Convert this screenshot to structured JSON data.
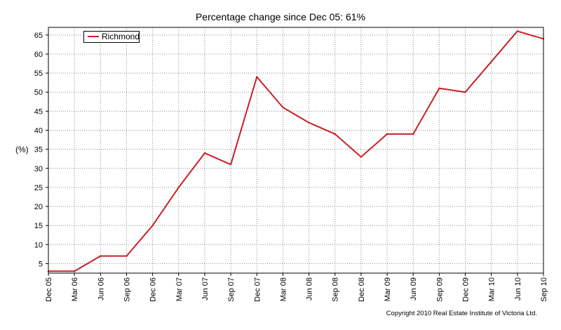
{
  "chart_data": {
    "type": "line",
    "title": "Percentage change since Dec 05: 61%",
    "ylabel": "(%)",
    "xlabel": "",
    "categories": [
      "Dec 05",
      "Mar 06",
      "Jun 06",
      "Sep 06",
      "Dec 06",
      "Mar 07",
      "Jun 07",
      "Sep 07",
      "Dec 07",
      "Mar 08",
      "Jun 08",
      "Sep 08",
      "Dec 08",
      "Mar 09",
      "Jun 09",
      "Sep 09",
      "Dec 09",
      "Mar 10",
      "Jun 10",
      "Sep 10"
    ],
    "series": [
      {
        "name": "Richmond",
        "color": "#cc1f27",
        "values": [
          3,
          3,
          7,
          7,
          15,
          25,
          34,
          31,
          54,
          46,
          42,
          39,
          33,
          39,
          39,
          51,
          50,
          58,
          66,
          64
        ]
      }
    ],
    "ylim": [
      2.5,
      67
    ],
    "yticks": [
      5,
      10,
      15,
      20,
      25,
      30,
      35,
      40,
      45,
      50,
      55,
      60,
      65
    ],
    "grid": true,
    "legend_position": "top-left",
    "copyright": "Copyright 2010 Real Estate Institute of Victoria Ltd."
  }
}
